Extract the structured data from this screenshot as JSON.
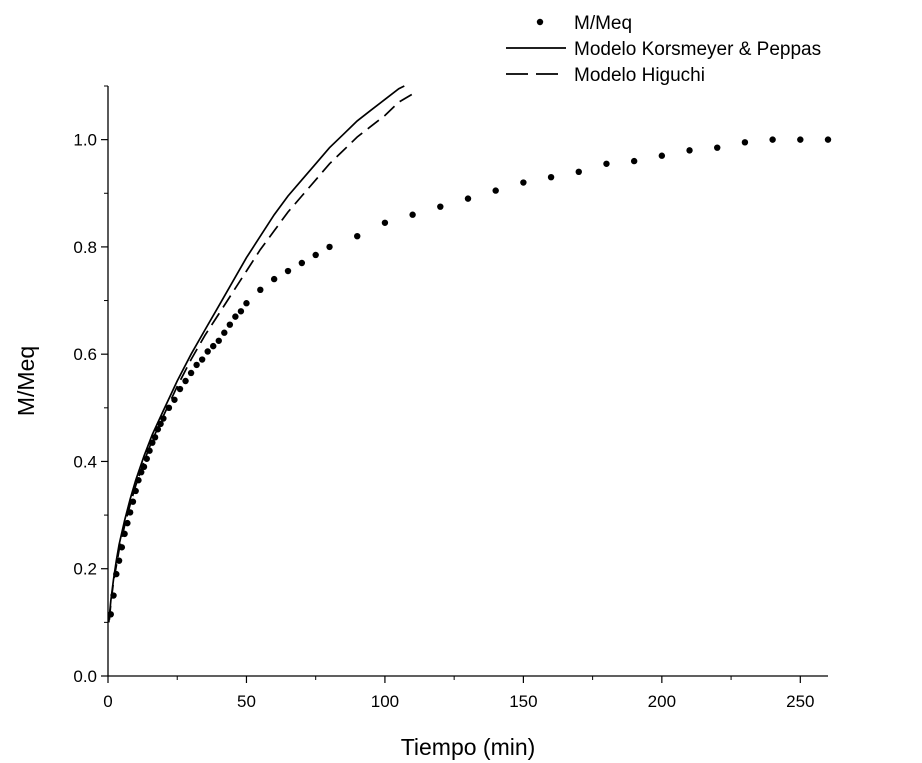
{
  "chart_data": {
    "type": "scatter",
    "title": "",
    "xlabel": "Tiempo (min)",
    "ylabel": "M/Meq",
    "xlim": [
      0,
      260
    ],
    "ylim": [
      0,
      1.1
    ],
    "x_ticks": [
      0,
      50,
      100,
      150,
      200,
      250
    ],
    "x_tick_labels": [
      "0",
      "50",
      "100",
      "150",
      "200",
      "250"
    ],
    "y_ticks": [
      0.0,
      0.2,
      0.4,
      0.6,
      0.8,
      1.0
    ],
    "y_tick_labels": [
      "0.0",
      "0.2",
      "0.4",
      "0.6",
      "0.8",
      "1.0"
    ],
    "grid": false,
    "legend_position": "top-right, outside plot",
    "series": [
      {
        "name": "M/Meq",
        "kind": "points",
        "color": "#000000",
        "x": [
          1,
          2,
          3,
          4,
          5,
          6,
          7,
          8,
          9,
          10,
          11,
          12,
          13,
          14,
          15,
          16,
          17,
          18,
          19,
          20,
          22,
          24,
          26,
          28,
          30,
          32,
          34,
          36,
          38,
          40,
          42,
          44,
          46,
          48,
          50,
          55,
          60,
          65,
          70,
          75,
          80,
          90,
          100,
          110,
          120,
          130,
          140,
          150,
          160,
          170,
          180,
          190,
          200,
          210,
          220,
          230,
          240,
          250,
          260
        ],
        "y": [
          0.115,
          0.15,
          0.19,
          0.215,
          0.24,
          0.265,
          0.285,
          0.305,
          0.325,
          0.345,
          0.365,
          0.38,
          0.39,
          0.405,
          0.42,
          0.435,
          0.445,
          0.46,
          0.47,
          0.48,
          0.5,
          0.515,
          0.535,
          0.55,
          0.565,
          0.58,
          0.59,
          0.605,
          0.615,
          0.625,
          0.64,
          0.655,
          0.67,
          0.68,
          0.695,
          0.72,
          0.74,
          0.755,
          0.77,
          0.785,
          0.8,
          0.82,
          0.845,
          0.86,
          0.875,
          0.89,
          0.905,
          0.92,
          0.93,
          0.94,
          0.955,
          0.96,
          0.97,
          0.98,
          0.985,
          0.995,
          1.0,
          1.0,
          1.0
        ]
      },
      {
        "name": "Modelo Korsmeyer & Peppas",
        "kind": "line",
        "dash": "solid",
        "color": "#000000",
        "x": [
          0.3,
          1,
          2,
          3,
          4,
          6,
          8,
          10,
          13,
          16,
          20,
          25,
          30,
          35,
          40,
          45,
          50,
          55,
          60,
          65,
          70,
          75,
          80,
          85,
          90,
          95,
          100,
          105,
          107
        ],
        "y": [
          0.1,
          0.14,
          0.18,
          0.215,
          0.245,
          0.29,
          0.33,
          0.365,
          0.41,
          0.45,
          0.495,
          0.55,
          0.6,
          0.645,
          0.69,
          0.735,
          0.78,
          0.82,
          0.86,
          0.895,
          0.925,
          0.955,
          0.985,
          1.01,
          1.035,
          1.055,
          1.075,
          1.095,
          1.1
        ]
      },
      {
        "name": "Modelo Higuchi",
        "kind": "line",
        "dash": "dashed",
        "color": "#000000",
        "x": [
          0.5,
          1,
          2,
          3,
          4,
          6,
          8,
          10,
          13,
          16,
          20,
          25,
          30,
          35,
          40,
          45,
          50,
          55,
          60,
          65,
          70,
          75,
          80,
          85,
          90,
          95,
          100,
          105,
          110
        ],
        "y": [
          0.105,
          0.135,
          0.175,
          0.205,
          0.235,
          0.28,
          0.32,
          0.355,
          0.4,
          0.44,
          0.485,
          0.54,
          0.59,
          0.635,
          0.675,
          0.715,
          0.755,
          0.795,
          0.83,
          0.865,
          0.895,
          0.925,
          0.955,
          0.98,
          1.005,
          1.025,
          1.045,
          1.07,
          1.085
        ]
      }
    ]
  }
}
